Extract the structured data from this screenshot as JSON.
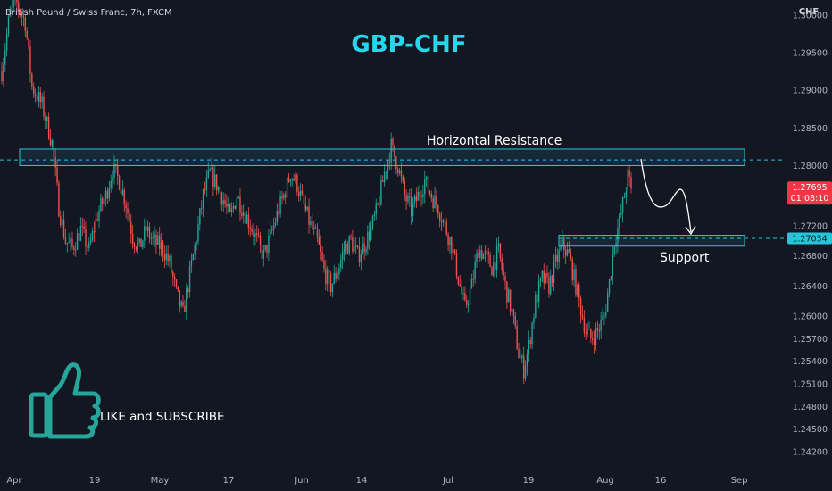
{
  "chart_data": {
    "type": "candlestick",
    "symbol_line": "British Pound / Swiss Franc, 7h, FXCM",
    "title": "GBP-CHF",
    "currency": "CHF",
    "ylim": [
      1.2395,
      1.302
    ],
    "y_ticks": [
      "1.30000",
      "1.29500",
      "1.29000",
      "1.28500",
      "1.28000",
      "1.27200",
      "1.26800",
      "1.26400",
      "1.26000",
      "1.25700",
      "1.25400",
      "1.25100",
      "1.24800",
      "1.24500",
      "1.24200"
    ],
    "x_ticks": [
      "Apr",
      "19",
      "May",
      "17",
      "Jun",
      "14",
      "Jul",
      "19",
      "Aug",
      "16",
      "Sep"
    ],
    "price_label": {
      "value": "1.27695",
      "countdown": "01:08:10",
      "price": 1.27695,
      "color": "#f23645"
    },
    "support_label": {
      "value": "1.27034",
      "price": 1.27034,
      "color": "#26c6da"
    },
    "resistance_zone": {
      "label": "Horizontal Resistance",
      "low": 1.28,
      "high": 1.2822,
      "line": 1.28075
    },
    "support_zone": {
      "label": "Support",
      "low": 1.2693,
      "high": 1.27075,
      "line": 1.27034
    },
    "cta": {
      "text": "LIKE and SUBSCRIBE",
      "icon": "thumbs-up-icon"
    },
    "colors": {
      "up": "#26a69a",
      "down": "#ef5350",
      "zone": "#26c6da",
      "title": "#26d6ea",
      "background": "#131722"
    },
    "price_path": [
      [
        0,
        1.2925
      ],
      [
        4,
        1.299
      ],
      [
        8,
        1.302
      ],
      [
        14,
        1.299
      ],
      [
        18,
        1.2905
      ],
      [
        24,
        1.288
      ],
      [
        30,
        1.283
      ],
      [
        34,
        1.2745
      ],
      [
        38,
        1.27
      ],
      [
        42,
        1.269
      ],
      [
        47,
        1.2715
      ],
      [
        52,
        1.2688
      ],
      [
        57,
        1.2735
      ],
      [
        62,
        1.276
      ],
      [
        66,
        1.2795
      ],
      [
        70,
        1.278
      ],
      [
        74,
        1.275
      ],
      [
        78,
        1.2705
      ],
      [
        82,
        1.269
      ],
      [
        86,
        1.2715
      ],
      [
        90,
        1.27
      ],
      [
        96,
        1.269
      ],
      [
        100,
        1.267
      ],
      [
        104,
        1.263
      ],
      [
        108,
        1.2602
      ],
      [
        112,
        1.2655
      ],
      [
        116,
        1.2705
      ],
      [
        120,
        1.276
      ],
      [
        124,
        1.279
      ],
      [
        128,
        1.2775
      ],
      [
        132,
        1.2755
      ],
      [
        136,
        1.273
      ],
      [
        140,
        1.276
      ],
      [
        144,
        1.274
      ],
      [
        148,
        1.2722
      ],
      [
        152,
        1.27
      ],
      [
        156,
        1.268
      ],
      [
        160,
        1.2705
      ],
      [
        164,
        1.2735
      ],
      [
        168,
        1.276
      ],
      [
        172,
        1.279
      ],
      [
        176,
        1.2775
      ],
      [
        180,
        1.2745
      ],
      [
        184,
        1.272
      ],
      [
        188,
        1.27
      ],
      [
        192,
        1.266
      ],
      [
        196,
        1.264
      ],
      [
        200,
        1.266
      ],
      [
        204,
        1.269
      ],
      [
        208,
        1.27
      ],
      [
        212,
        1.268
      ],
      [
        216,
        1.2695
      ],
      [
        220,
        1.2715
      ],
      [
        224,
        1.2745
      ],
      [
        228,
        1.279
      ],
      [
        232,
        1.2825
      ],
      [
        236,
        1.28
      ],
      [
        240,
        1.276
      ],
      [
        244,
        1.274
      ],
      [
        248,
        1.276
      ],
      [
        252,
        1.278
      ],
      [
        256,
        1.276
      ],
      [
        260,
        1.2745
      ],
      [
        264,
        1.272
      ],
      [
        268,
        1.2695
      ],
      [
        272,
        1.265
      ],
      [
        276,
        1.261
      ],
      [
        280,
        1.264
      ],
      [
        284,
        1.269
      ],
      [
        288,
        1.268
      ],
      [
        292,
        1.2665
      ],
      [
        296,
        1.2685
      ],
      [
        300,
        1.264
      ],
      [
        304,
        1.2605
      ],
      [
        308,
        1.255
      ],
      [
        311,
        1.253
      ],
      [
        314,
        1.256
      ],
      [
        318,
        1.262
      ],
      [
        322,
        1.265
      ],
      [
        326,
        1.264
      ],
      [
        330,
        1.267
      ],
      [
        334,
        1.2695
      ],
      [
        338,
        1.268
      ],
      [
        342,
        1.264
      ],
      [
        346,
        1.26
      ],
      [
        348,
        1.258
      ],
      [
        351,
        1.257
      ],
      [
        355,
        1.258
      ],
      [
        359,
        1.26
      ],
      [
        362,
        1.2645
      ],
      [
        365,
        1.27
      ],
      [
        368,
        1.2725
      ],
      [
        371,
        1.276
      ],
      [
        373,
        1.2785
      ],
      [
        375,
        1.277
      ]
    ]
  }
}
